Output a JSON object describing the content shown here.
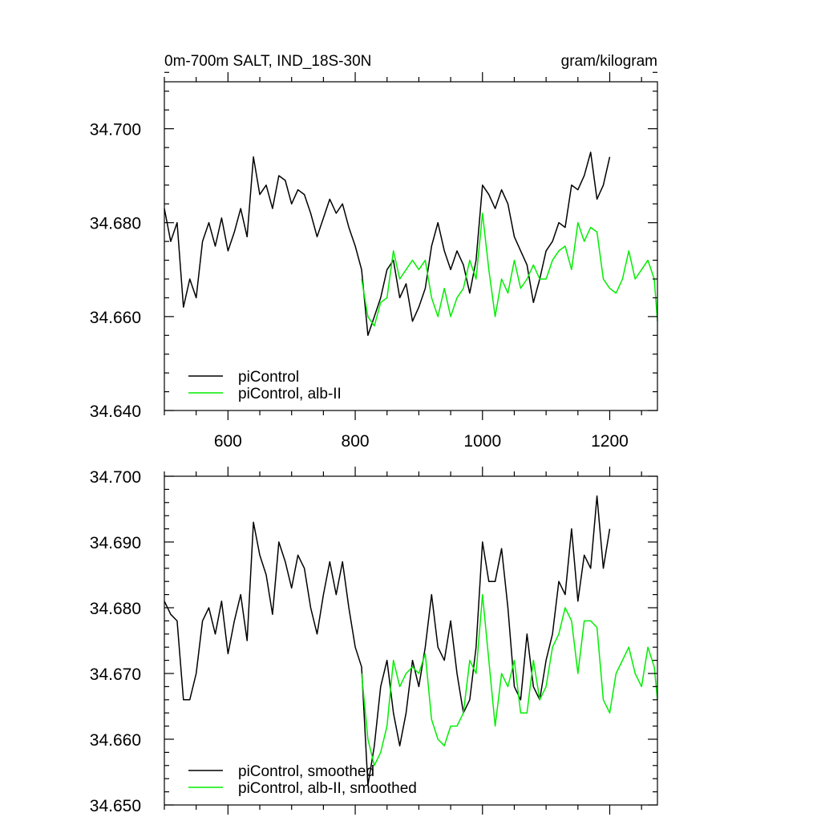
{
  "chart_data": [
    {
      "type": "line",
      "title_left": "0m-700m SALT, IND_18S-30N",
      "title_right": "gram/kilogram",
      "xlim": [
        500,
        1275
      ],
      "ylim": [
        34.64,
        34.71
      ],
      "x_ticks": [
        600,
        800,
        1000,
        1200
      ],
      "x_tick_labels": [
        "600",
        "800",
        "1000",
        "1200"
      ],
      "y_ticks": [
        34.64,
        34.66,
        34.68,
        34.7
      ],
      "y_tick_labels": [
        "34.640",
        "34.660",
        "34.680",
        "34.700"
      ],
      "legend_position": "bottom-left",
      "series": [
        {
          "name": "piControl",
          "color": "#000000",
          "x": [
            500,
            510,
            520,
            530,
            540,
            550,
            560,
            570,
            580,
            590,
            600,
            610,
            620,
            630,
            640,
            650,
            660,
            670,
            680,
            690,
            700,
            710,
            720,
            730,
            740,
            750,
            760,
            770,
            780,
            790,
            800,
            810,
            820,
            830,
            840,
            850,
            860,
            870,
            880,
            890,
            900,
            910,
            920,
            930,
            940,
            950,
            960,
            970,
            980,
            990,
            1000,
            1010,
            1020,
            1030,
            1040,
            1050,
            1060,
            1070,
            1080,
            1090,
            1100,
            1110,
            1120,
            1130,
            1140,
            1150,
            1160,
            1170,
            1180,
            1190,
            1200
          ],
          "values": [
            34.683,
            34.676,
            34.68,
            34.662,
            34.668,
            34.664,
            34.676,
            34.68,
            34.675,
            34.681,
            34.674,
            34.678,
            34.683,
            34.677,
            34.694,
            34.686,
            34.688,
            34.683,
            34.69,
            34.689,
            34.684,
            34.687,
            34.686,
            34.682,
            34.677,
            34.681,
            34.685,
            34.682,
            34.684,
            34.679,
            34.675,
            34.67,
            34.656,
            34.66,
            34.664,
            34.67,
            34.672,
            34.664,
            34.667,
            34.659,
            34.662,
            34.666,
            34.675,
            34.68,
            34.674,
            34.67,
            34.674,
            34.671,
            34.665,
            34.672,
            34.688,
            34.686,
            34.683,
            34.687,
            34.684,
            34.677,
            34.674,
            34.671,
            34.663,
            34.668,
            34.674,
            34.676,
            34.68,
            34.679,
            34.688,
            34.687,
            34.69,
            34.695,
            34.685,
            34.688,
            34.694
          ]
        },
        {
          "name": "piControl, alb-II",
          "color": "#00ee00",
          "x": [
            810,
            820,
            830,
            840,
            850,
            860,
            870,
            880,
            890,
            900,
            910,
            920,
            930,
            940,
            950,
            960,
            970,
            980,
            990,
            1000,
            1010,
            1020,
            1030,
            1040,
            1050,
            1060,
            1070,
            1080,
            1090,
            1100,
            1110,
            1120,
            1130,
            1140,
            1150,
            1160,
            1170,
            1180,
            1190,
            1200,
            1210,
            1220,
            1230,
            1240,
            1250,
            1260,
            1270,
            1275
          ],
          "values": [
            34.668,
            34.66,
            34.658,
            34.663,
            34.664,
            34.674,
            34.668,
            34.67,
            34.672,
            34.67,
            34.672,
            34.664,
            34.66,
            34.666,
            34.66,
            34.664,
            34.666,
            34.672,
            34.668,
            34.682,
            34.67,
            34.66,
            34.668,
            34.665,
            34.672,
            34.666,
            34.668,
            34.671,
            34.668,
            34.668,
            34.672,
            34.674,
            34.675,
            34.67,
            34.68,
            34.676,
            34.679,
            34.678,
            34.668,
            34.666,
            34.665,
            34.668,
            34.674,
            34.668,
            34.67,
            34.672,
            34.668,
            34.659
          ]
        }
      ]
    },
    {
      "type": "line",
      "xlim": [
        500,
        1275
      ],
      "ylim": [
        34.65,
        34.7
      ],
      "x_ticks": [
        600,
        800,
        1000,
        1200
      ],
      "y_ticks": [
        34.65,
        34.66,
        34.67,
        34.68,
        34.69,
        34.7
      ],
      "y_tick_labels": [
        "34.650",
        "34.660",
        "34.670",
        "34.680",
        "34.690",
        "34.700"
      ],
      "legend_position": "bottom-left",
      "series": [
        {
          "name": "piControl, smoothed",
          "color": "#000000",
          "x": [
            500,
            510,
            520,
            530,
            540,
            550,
            560,
            570,
            580,
            590,
            600,
            610,
            620,
            630,
            640,
            650,
            660,
            670,
            680,
            690,
            700,
            710,
            720,
            730,
            740,
            750,
            760,
            770,
            780,
            790,
            800,
            810,
            820,
            830,
            840,
            850,
            860,
            870,
            880,
            890,
            900,
            910,
            920,
            930,
            940,
            950,
            960,
            970,
            980,
            990,
            1000,
            1010,
            1020,
            1030,
            1040,
            1050,
            1060,
            1070,
            1080,
            1090,
            1100,
            1110,
            1120,
            1130,
            1140,
            1150,
            1160,
            1170,
            1180,
            1190,
            1200
          ],
          "values": [
            34.681,
            34.679,
            34.678,
            34.666,
            34.666,
            34.67,
            34.678,
            34.68,
            34.676,
            34.681,
            34.673,
            34.678,
            34.682,
            34.675,
            34.693,
            34.688,
            34.685,
            34.679,
            34.69,
            34.687,
            34.683,
            34.688,
            34.686,
            34.68,
            34.676,
            34.682,
            34.687,
            34.682,
            34.687,
            34.68,
            34.674,
            34.671,
            34.653,
            34.659,
            34.668,
            34.672,
            34.664,
            34.659,
            34.664,
            34.672,
            34.668,
            34.674,
            34.682,
            34.674,
            34.672,
            34.678,
            34.67,
            34.664,
            34.666,
            34.674,
            34.69,
            34.684,
            34.684,
            34.689,
            34.68,
            34.668,
            34.666,
            34.676,
            34.668,
            34.666,
            34.672,
            34.676,
            34.684,
            34.682,
            34.692,
            34.681,
            34.688,
            34.686,
            34.697,
            34.686,
            34.692
          ]
        },
        {
          "name": "piControl, alb-II, smoothed",
          "color": "#00ee00",
          "x": [
            810,
            820,
            830,
            840,
            850,
            860,
            870,
            880,
            890,
            900,
            910,
            920,
            930,
            940,
            950,
            960,
            970,
            980,
            990,
            1000,
            1010,
            1020,
            1030,
            1040,
            1050,
            1060,
            1070,
            1080,
            1090,
            1100,
            1110,
            1120,
            1130,
            1140,
            1150,
            1160,
            1170,
            1180,
            1190,
            1200,
            1210,
            1220,
            1230,
            1240,
            1250,
            1260,
            1270,
            1275
          ],
          "values": [
            34.67,
            34.66,
            34.656,
            34.658,
            34.662,
            34.672,
            34.668,
            34.67,
            34.671,
            34.67,
            34.673,
            34.663,
            34.66,
            34.659,
            34.662,
            34.662,
            34.664,
            34.672,
            34.67,
            34.682,
            34.672,
            34.662,
            34.67,
            34.668,
            34.672,
            34.664,
            34.664,
            34.672,
            34.666,
            34.668,
            34.674,
            34.676,
            34.68,
            34.678,
            34.67,
            34.678,
            34.678,
            34.677,
            34.666,
            34.664,
            34.67,
            34.672,
            34.674,
            34.67,
            34.668,
            34.674,
            34.671,
            34.666
          ]
        }
      ]
    }
  ]
}
